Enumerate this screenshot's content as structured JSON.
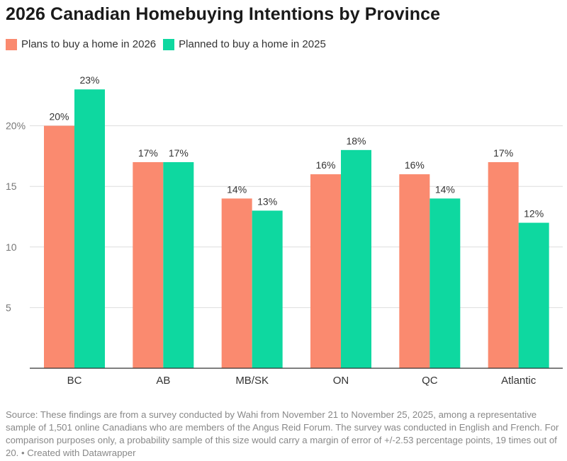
{
  "chart_data": {
    "type": "bar",
    "title": "2026 Canadian Homebuying Intentions by Province",
    "categories": [
      "BC",
      "AB",
      "MB/SK",
      "ON",
      "QC",
      "Atlantic"
    ],
    "series": [
      {
        "name": "Plans to buy a home in 2026",
        "color": "#fa8a6f",
        "values": [
          20,
          17,
          14,
          16,
          16,
          17
        ],
        "labels": [
          "20%",
          "17%",
          "14%",
          "16%",
          "16%",
          "17%"
        ]
      },
      {
        "name": "Planned to buy a home in 2025",
        "color": "#0ed8a0",
        "values": [
          23,
          17,
          13,
          18,
          14,
          12
        ],
        "labels": [
          "23%",
          "17%",
          "13%",
          "18%",
          "14%",
          "12%"
        ]
      }
    ],
    "yticks": [
      5,
      10,
      15,
      20
    ],
    "ytick_labels": [
      "5",
      "10",
      "15",
      "20%"
    ],
    "ylim": [
      0,
      25
    ],
    "grid": true,
    "legend_position": "top-left"
  },
  "source_text": "Source: These findings are from a survey conducted by Wahi from November 21 to November 25, 2025, among a representative sample of 1,501 online Canadians who are members of the Angus Reid Forum. The survey was conducted in English and French. For comparison purposes only, a probability sample of this size would carry a margin of error of +/-2.53 percentage points, 19 times out of 20. • Created with Datawrapper"
}
